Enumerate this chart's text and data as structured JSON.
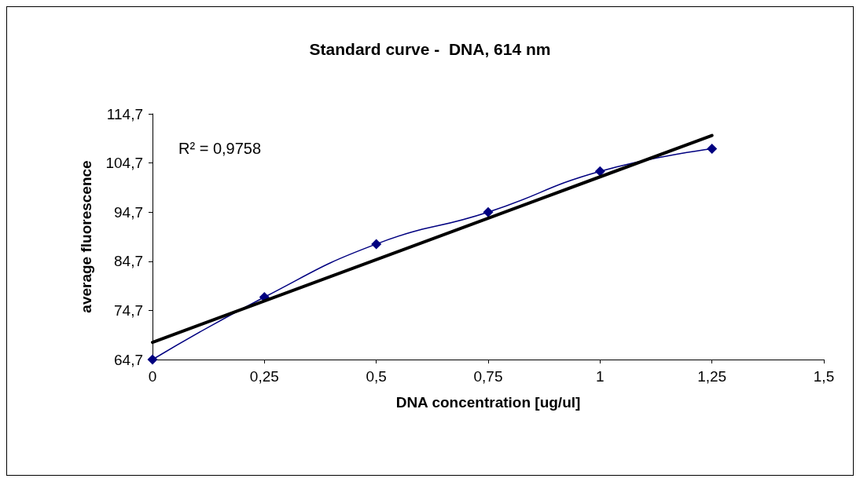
{
  "chart_data": {
    "type": "line",
    "title": "Standard curve -  DNA, 614 nm",
    "xlabel": "DNA concentration [ug/ul]",
    "ylabel": "average fluorescence",
    "annotations": [
      "R² = 0,9758"
    ],
    "series": [
      {
        "color": "#000080",
        "x": [
          0,
          0.25,
          0.5,
          0.75,
          1,
          1.25
        ],
        "values": [
          64.7,
          77.4,
          88.2,
          94.7,
          103.0,
          107.6
        ],
        "marker": "diamond"
      },
      {
        "color": "#000000",
        "x": [
          0,
          1.25
        ],
        "values": [
          68.2,
          110.3
        ],
        "marker": "none"
      }
    ],
    "xlim": [
      0,
      1.5
    ],
    "xticks": [
      0,
      {
        "value": 0.25,
        "label": "0,25"
      },
      {
        "value": 0.5,
        "label": "0,5"
      },
      {
        "value": 0.75,
        "label": "0,75"
      },
      1,
      {
        "value": 1.25,
        "label": "1,25"
      },
      {
        "value": 1.5,
        "label": "1,5"
      }
    ],
    "ylim": [
      64.7,
      114.7
    ],
    "yticks": [
      {
        "value": 64.7,
        "label": "64,7"
      },
      {
        "value": 74.7,
        "label": "74,7"
      },
      {
        "value": 84.7,
        "label": "84,7"
      },
      {
        "value": 94.7,
        "label": "94,7"
      },
      {
        "value": 104.7,
        "label": "104,7"
      },
      {
        "value": 114.7,
        "label": "114,7"
      }
    ],
    "grid": false,
    "line_style": "solid"
  }
}
